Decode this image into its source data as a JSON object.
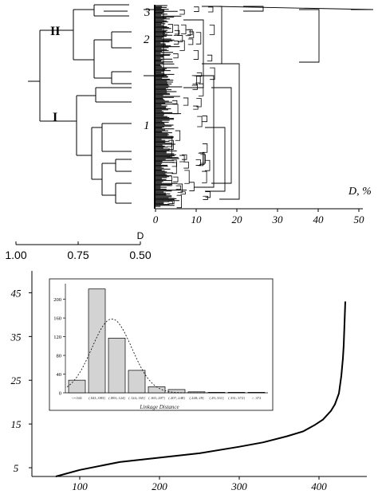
{
  "top_figure": {
    "cluster_labels": [
      "II",
      "I"
    ],
    "subcluster_labels": [
      "3",
      "2",
      "1"
    ],
    "x_axis_label": "D, %",
    "x_ticks": [
      0,
      10,
      20,
      30,
      40,
      50
    ],
    "small_axis_title": "D",
    "small_axis_ticks": [
      "1.00",
      "0.75",
      "0.50"
    ]
  },
  "chart_data": [
    {
      "type": "line",
      "xlabel": "",
      "ylabel": "",
      "x_ticks": [
        100,
        200,
        300,
        400
      ],
      "y_ticks": [
        5,
        15,
        25,
        35,
        45
      ],
      "xlim": [
        40,
        460
      ],
      "ylim": [
        3,
        50
      ],
      "series": [
        {
          "x": [
            70,
            100,
            150,
            200,
            250,
            300,
            330,
            360,
            380,
            395,
            405,
            415,
            420,
            425,
            428,
            430,
            431,
            432,
            433
          ],
          "values": [
            3.0,
            4.5,
            6.3,
            7.3,
            8.3,
            9.8,
            10.8,
            12.2,
            13.3,
            14.8,
            16.0,
            18.0,
            19.5,
            22.0,
            26.0,
            30.0,
            33.0,
            38.0,
            43.0
          ]
        }
      ]
    },
    {
      "type": "bar",
      "xlabel": "Linkage Distance",
      "categories": [
        "<=.041",
        "(.041;.083]",
        "(.083;.124]",
        "(.124;.165]",
        "(.165;.207]",
        "(.207;.248]",
        "(.248;.29]",
        "(.29;.331]",
        "(.331;.372]",
        "> .372"
      ],
      "values": [
        27,
        222,
        117,
        48,
        13,
        7,
        2,
        1,
        1,
        1
      ],
      "fit_curve": {
        "mean_index": 1.75,
        "peak": 158,
        "sd": 1.0
      },
      "y_ticks": [
        0,
        40,
        80,
        120,
        160,
        200
      ],
      "ylim": [
        0,
        230
      ]
    }
  ]
}
